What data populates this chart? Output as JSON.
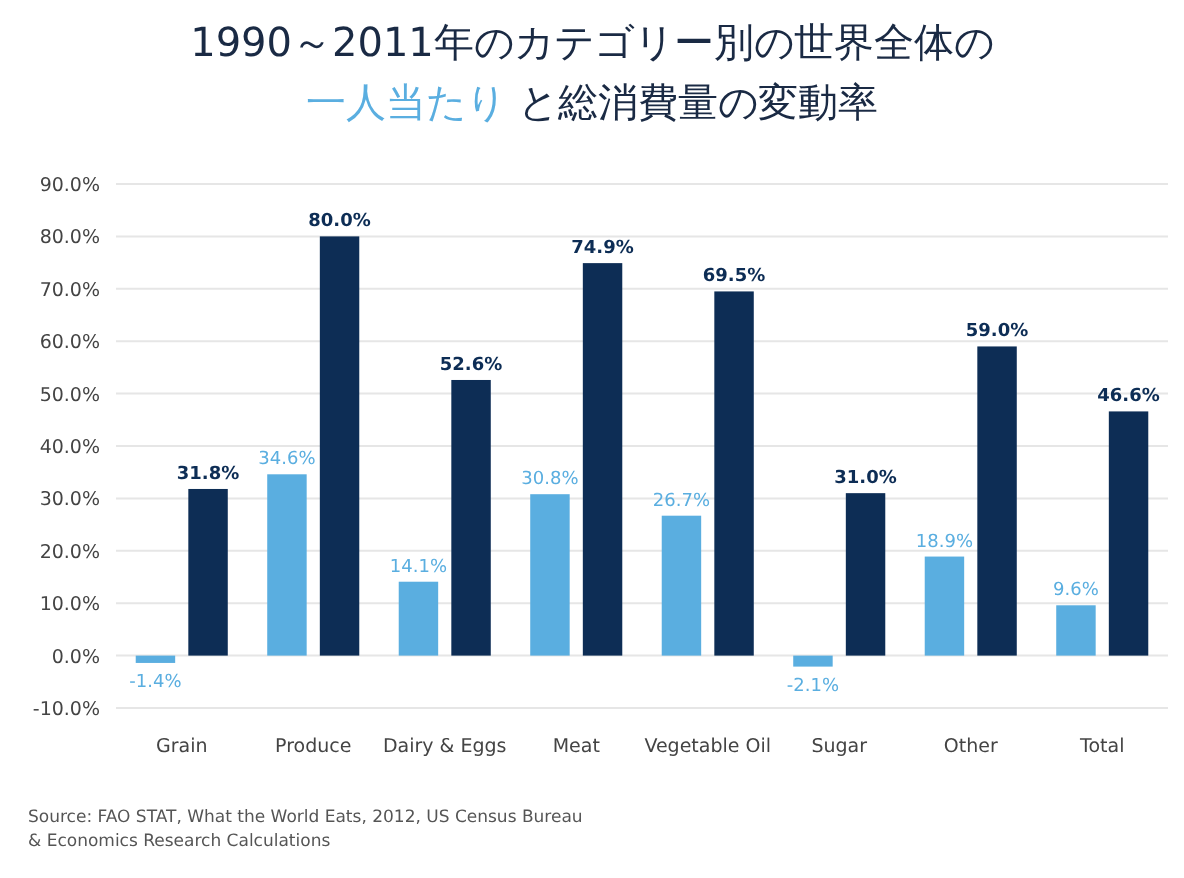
{
  "chart_data": {
    "type": "bar",
    "title": "1990～2011年のカテゴリー別の世界全体の",
    "subtitle": "一人当たり と総消費量の変動率",
    "categories": [
      "Grain",
      "Produce",
      "Dairy & Eggs",
      "Meat",
      "Vegetable Oil",
      "Sugar",
      "Other",
      "Total"
    ],
    "series": [
      {
        "color": "#5aaee0",
        "values": [
          -1.4,
          34.6,
          14.1,
          30.8,
          26.7,
          -2.1,
          18.9,
          9.6
        ],
        "value_labels": [
          "-1.4%",
          "34.6%",
          "14.1%",
          "30.8%",
          "26.7%",
          "-2.1%",
          "18.9%",
          "9.6%"
        ]
      },
      {
        "color": "#0d2d55",
        "values": [
          31.8,
          80.0,
          52.6,
          74.9,
          69.5,
          31.0,
          59.0,
          46.6
        ],
        "value_labels": [
          "31.8%",
          "80.0%",
          "52.6%",
          "74.9%",
          "69.5%",
          "31.0%",
          "59.0%",
          "46.6%"
        ]
      }
    ],
    "ylim": [
      -10,
      90
    ],
    "yticks": [
      {
        "value": -10,
        "label": "-10.0%"
      },
      {
        "value": 0,
        "label": "0.0%"
      },
      {
        "value": 10,
        "label": "10.0%"
      },
      {
        "value": 20,
        "label": "20.0%"
      },
      {
        "value": 30,
        "label": "30.0%"
      },
      {
        "value": 40,
        "label": "40.0%"
      },
      {
        "value": 50,
        "label": "50.0%"
      },
      {
        "value": 60,
        "label": "60.0%"
      },
      {
        "value": 70,
        "label": "70.0%"
      },
      {
        "value": 80,
        "label": "80.0%"
      },
      {
        "value": 90,
        "label": "90.0%"
      }
    ],
    "grid": "y",
    "annotations": [
      "Source: FAO STAT, What the World Eats, 2012, US Census Bureau",
      "& Economics Research Calculations"
    ]
  }
}
